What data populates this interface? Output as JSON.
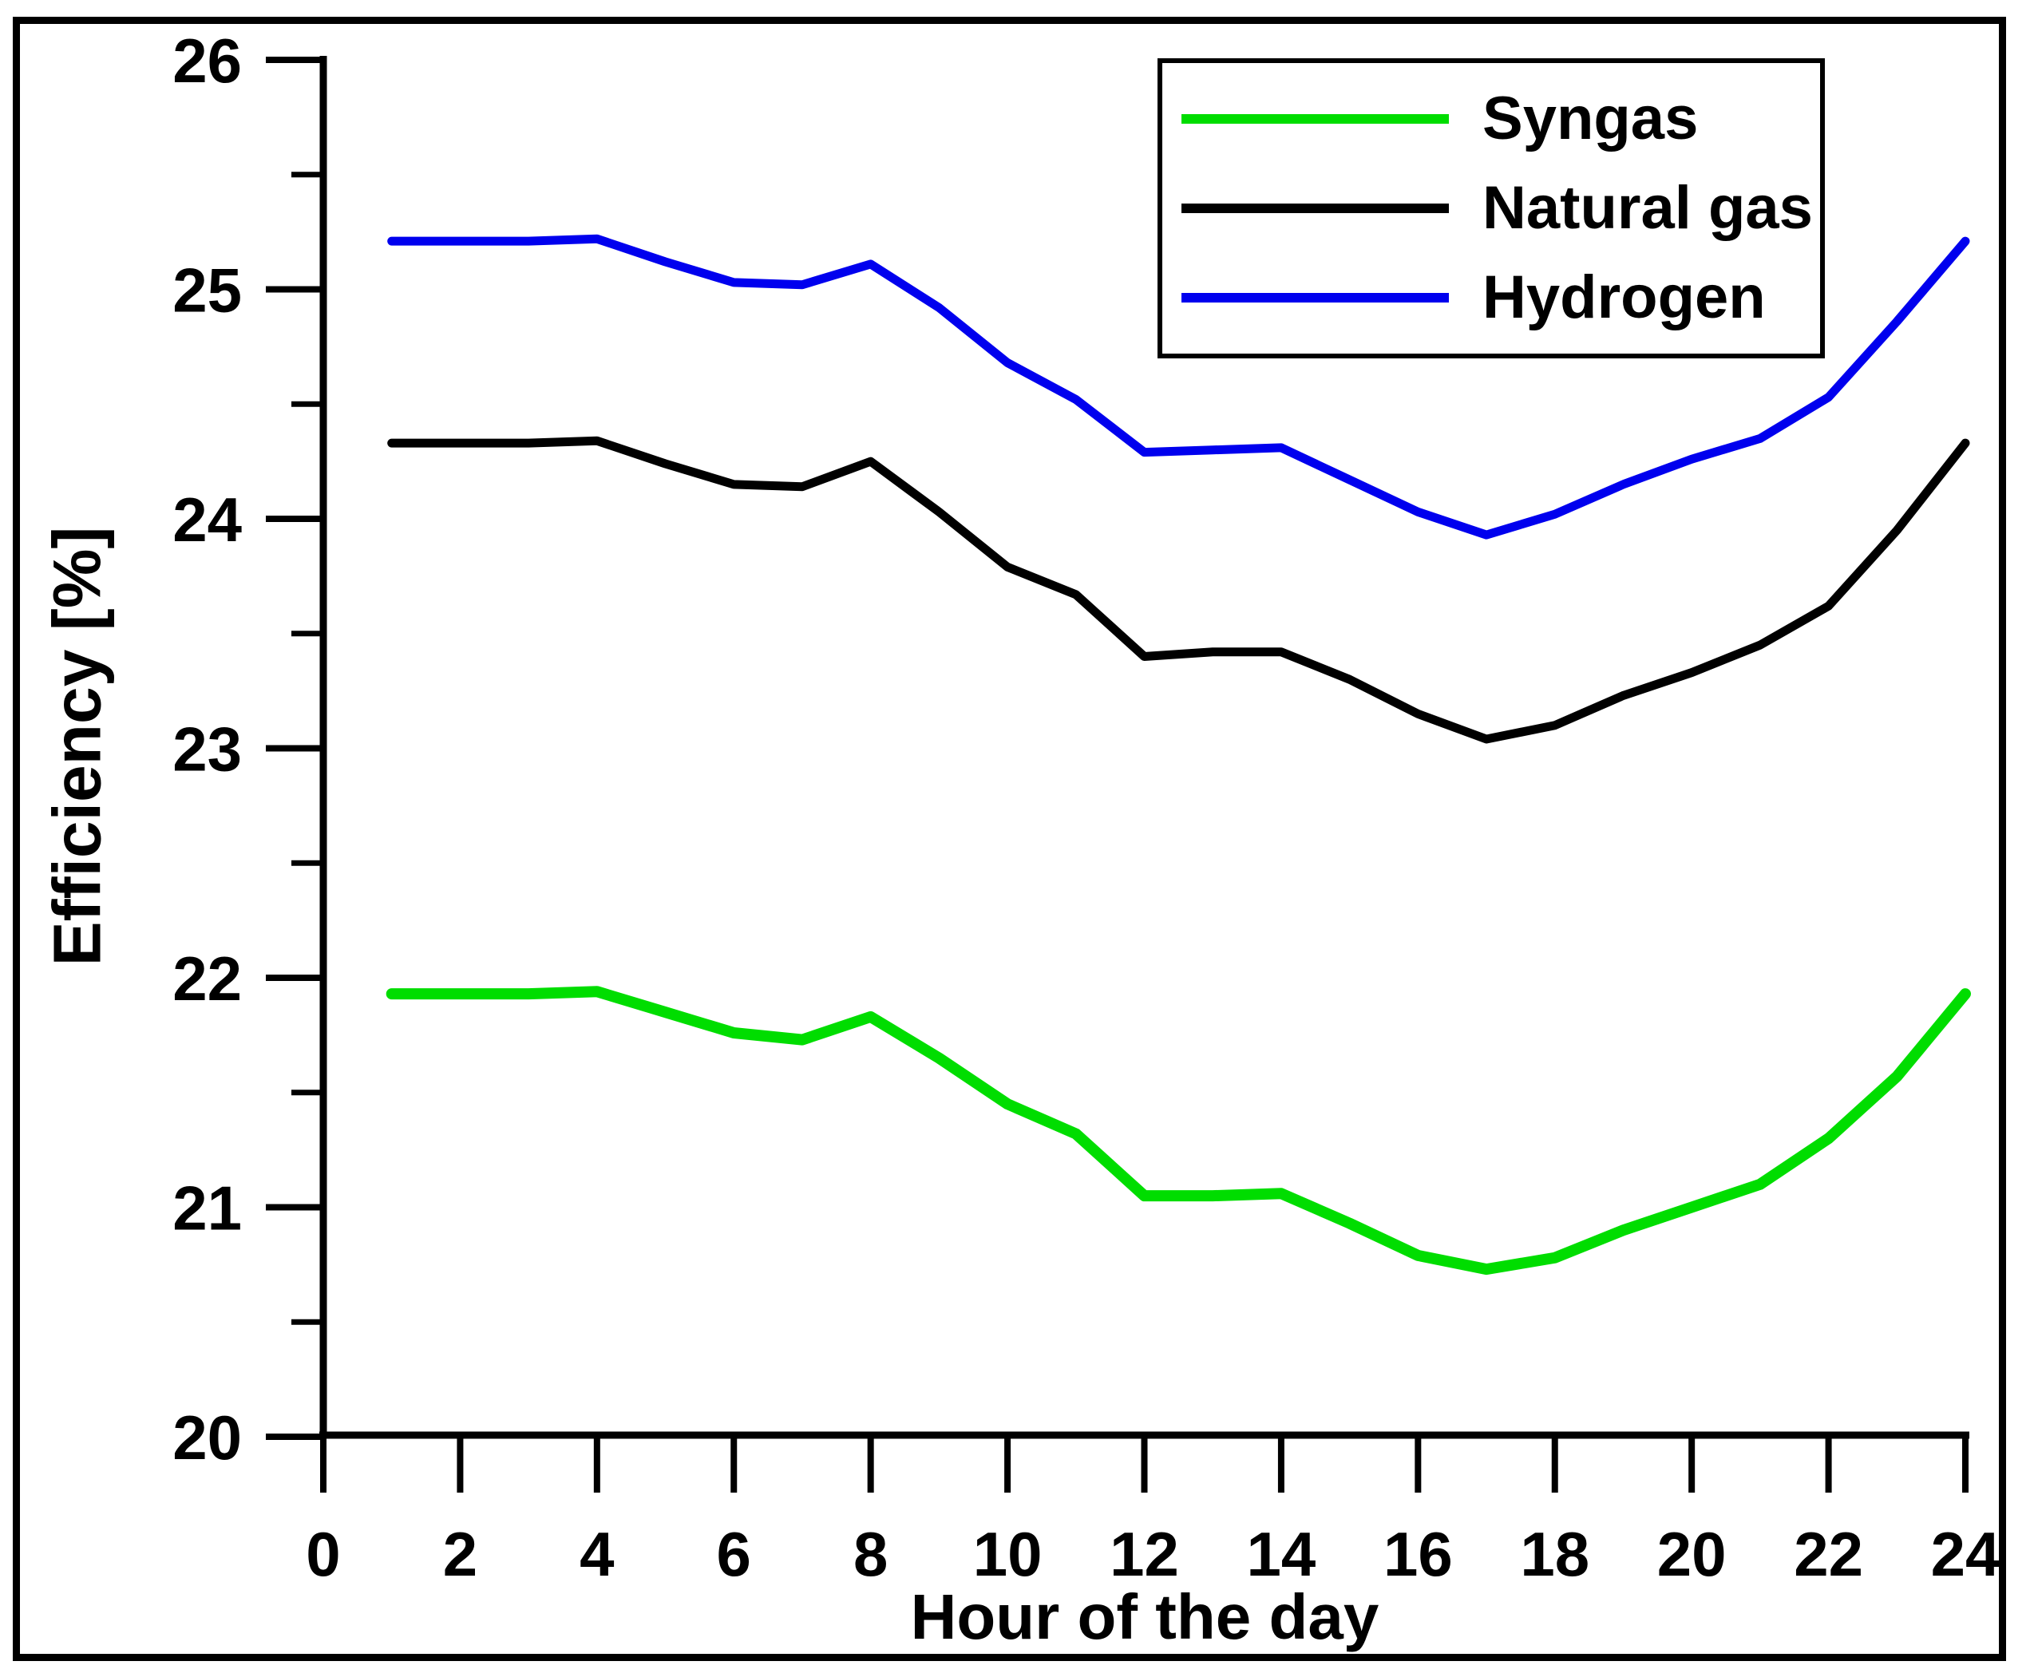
{
  "figure": {
    "background_color": "#ffffff",
    "frame_color": "#000000"
  },
  "chart_data": {
    "type": "line",
    "title": "",
    "xlabel": "Hour of the day",
    "ylabel": "Efficiency [%]",
    "xlim": [
      0,
      24
    ],
    "ylim": [
      20,
      26
    ],
    "grid": false,
    "legend_position": "top-right",
    "x_ticks": [
      0,
      2,
      4,
      6,
      8,
      10,
      12,
      14,
      16,
      18,
      20,
      22,
      24
    ],
    "y_ticks": [
      20,
      21,
      22,
      23,
      24,
      25,
      26
    ],
    "y_minor_ticks": [
      20.5,
      21.5,
      22.5,
      23.5,
      24.5,
      25.5
    ],
    "x": [
      1,
      2,
      3,
      4,
      5,
      6,
      7,
      8,
      9,
      10,
      11,
      12,
      13,
      14,
      15,
      16,
      17,
      18,
      19,
      20,
      21,
      22,
      23,
      24
    ],
    "series": [
      {
        "name": "Syngas",
        "color": "#00dd00",
        "line_width": 14,
        "values": [
          21.93,
          21.93,
          21.93,
          21.94,
          21.85,
          21.76,
          21.73,
          21.83,
          21.65,
          21.45,
          21.32,
          21.05,
          21.05,
          21.06,
          20.93,
          20.79,
          20.73,
          20.78,
          20.9,
          21.0,
          21.1,
          21.3,
          21.57,
          21.93
        ]
      },
      {
        "name": "Natural gas",
        "color": "#000000",
        "line_width": 11,
        "values": [
          24.33,
          24.33,
          24.33,
          24.34,
          24.24,
          24.15,
          24.14,
          24.25,
          24.03,
          23.79,
          23.67,
          23.4,
          23.42,
          23.42,
          23.3,
          23.15,
          23.04,
          23.1,
          23.23,
          23.33,
          23.45,
          23.62,
          23.95,
          24.33
        ]
      },
      {
        "name": "Hydrogen",
        "color": "#0000ee",
        "line_width": 11,
        "values": [
          25.21,
          25.21,
          25.21,
          25.22,
          25.12,
          25.03,
          25.02,
          25.11,
          24.92,
          24.68,
          24.52,
          24.29,
          24.3,
          24.31,
          24.17,
          24.03,
          23.93,
          24.02,
          24.15,
          24.26,
          24.35,
          24.53,
          24.86,
          25.21
        ]
      }
    ]
  }
}
